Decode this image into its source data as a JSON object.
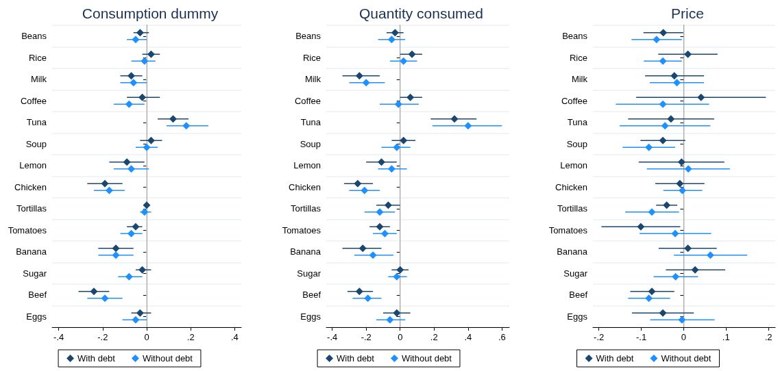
{
  "chart_data": [
    {
      "type": "scatter",
      "title": "Consumption dummy",
      "orientation": "horizontal",
      "categories": [
        "Beans",
        "Rice",
        "Milk",
        "Coffee",
        "Tuna",
        "Soup",
        "Lemon",
        "Chicken",
        "Tortillas",
        "Tomatoes",
        "Banana",
        "Sugar",
        "Beef",
        "Eggs"
      ],
      "xlim": [
        -0.43,
        0.43
      ],
      "xticks": [
        {
          "value": -0.4,
          "label": "-.4"
        },
        {
          "value": -0.2,
          "label": "-.2"
        },
        {
          "value": 0,
          "label": "0"
        },
        {
          "value": 0.2,
          "label": ".2"
        },
        {
          "value": 0.4,
          "label": ".4"
        }
      ],
      "grid": "y",
      "legend": "bottom",
      "marker": "diamond",
      "ref_lines": [
        {
          "axis": "x",
          "value": 0,
          "color": "#dddddd"
        }
      ],
      "series": [
        {
          "name": "With debt",
          "color": "#1a476f",
          "values": [
            -0.03,
            0.02,
            -0.07,
            -0.02,
            0.12,
            0.02,
            -0.09,
            -0.19,
            0,
            -0.05,
            -0.14,
            -0.02,
            -0.24,
            -0.03
          ],
          "errors": [
            [
              -0.06,
              0.01
            ],
            [
              -0.02,
              0.06
            ],
            [
              -0.12,
              -0.02
            ],
            [
              -0.09,
              0.06
            ],
            [
              0.05,
              0.19
            ],
            [
              -0.03,
              0.07
            ],
            [
              -0.17,
              -0.01
            ],
            [
              -0.27,
              -0.11
            ],
            [
              -0.01,
              0.01
            ],
            [
              -0.09,
              -0.02
            ],
            [
              -0.22,
              -0.06
            ],
            [
              -0.05,
              0.02
            ],
            [
              -0.31,
              -0.17
            ],
            [
              -0.07,
              0.02
            ]
          ]
        },
        {
          "name": "Without debt",
          "color": "#1e90ff",
          "values": [
            -0.05,
            -0.01,
            -0.06,
            -0.08,
            0.18,
            0,
            -0.07,
            -0.17,
            -0.01,
            -0.07,
            -0.14,
            -0.08,
            -0.19,
            -0.05
          ],
          "errors": [
            [
              -0.09,
              0
            ],
            [
              -0.07,
              0.04
            ],
            [
              -0.12,
              0
            ],
            [
              -0.15,
              -0.01
            ],
            [
              0.09,
              0.28
            ],
            [
              -0.05,
              0.05
            ],
            [
              -0.15,
              0.01
            ],
            [
              -0.24,
              -0.1
            ],
            [
              -0.03,
              0.02
            ],
            [
              -0.12,
              -0.02
            ],
            [
              -0.22,
              -0.06
            ],
            [
              -0.13,
              -0.02
            ],
            [
              -0.27,
              -0.11
            ],
            [
              -0.11,
              0
            ]
          ]
        }
      ]
    },
    {
      "type": "scatter",
      "title": "Quantity consumed",
      "orientation": "horizontal",
      "categories": [
        "Beans",
        "Rice",
        "Milk",
        "Coffee",
        "Tuna",
        "Soup",
        "Lemon",
        "Chicken",
        "Tortillas",
        "Tomatoes",
        "Banana",
        "Sugar",
        "Beef",
        "Eggs"
      ],
      "xlim": [
        -0.435,
        0.643
      ],
      "xticks": [
        {
          "value": -0.4,
          "label": "-.4"
        },
        {
          "value": -0.2,
          "label": "-.2"
        },
        {
          "value": 0,
          "label": "0"
        },
        {
          "value": 0.2,
          "label": ".2"
        },
        {
          "value": 0.4,
          "label": ".4"
        },
        {
          "value": 0.6,
          "label": ".6"
        }
      ],
      "grid": "y",
      "legend": "bottom",
      "marker": "diamond",
      "ref_lines": [
        {
          "axis": "x",
          "value": 0,
          "color": "#dddddd"
        }
      ],
      "series": [
        {
          "name": "With debt",
          "color": "#1a476f",
          "values": [
            -0.03,
            0.07,
            -0.24,
            0.06,
            0.32,
            0.02,
            -0.11,
            -0.25,
            -0.07,
            -0.12,
            -0.22,
            0,
            -0.24,
            -0.02
          ],
          "errors": [
            [
              -0.08,
              0.02
            ],
            [
              0,
              0.13
            ],
            [
              -0.34,
              -0.12
            ],
            [
              0,
              0.13
            ],
            [
              0.18,
              0.45
            ],
            [
              -0.05,
              0.09
            ],
            [
              -0.2,
              -0.02
            ],
            [
              -0.33,
              -0.16
            ],
            [
              -0.14,
              0
            ],
            [
              -0.18,
              -0.06
            ],
            [
              -0.34,
              -0.11
            ],
            [
              -0.05,
              0.05
            ],
            [
              -0.31,
              -0.16
            ],
            [
              -0.1,
              0.06
            ]
          ]
        },
        {
          "name": "Without debt",
          "color": "#1e90ff",
          "values": [
            -0.05,
            0.02,
            -0.2,
            -0.01,
            0.4,
            -0.02,
            -0.05,
            -0.21,
            -0.12,
            -0.09,
            -0.16,
            -0.02,
            -0.19,
            -0.06
          ],
          "errors": [
            [
              -0.13,
              0.03
            ],
            [
              -0.06,
              0.1
            ],
            [
              -0.3,
              -0.09
            ],
            [
              -0.12,
              0.11
            ],
            [
              0.19,
              0.6
            ],
            [
              -0.11,
              0.06
            ],
            [
              -0.13,
              0.04
            ],
            [
              -0.3,
              -0.12
            ],
            [
              -0.21,
              -0.03
            ],
            [
              -0.16,
              -0.02
            ],
            [
              -0.27,
              -0.04
            ],
            [
              -0.07,
              0.04
            ],
            [
              -0.28,
              -0.11
            ],
            [
              -0.14,
              0.03
            ]
          ]
        }
      ]
    },
    {
      "type": "scatter",
      "title": "Price",
      "orientation": "horizontal",
      "categories": [
        "Beans",
        "Rice",
        "Milk",
        "Coffee",
        "Tuna",
        "Soup",
        "Lemon",
        "Chicken",
        "Tortillas",
        "Tomatoes",
        "Banana",
        "Sugar",
        "Beef",
        "Eggs"
      ],
      "xlim": [
        -0.214,
        0.216
      ],
      "xticks": [
        {
          "value": -0.2,
          "label": "-.2"
        },
        {
          "value": -0.1,
          "label": "-.1"
        },
        {
          "value": 0,
          "label": "0"
        },
        {
          "value": 0.1,
          "label": ".1"
        },
        {
          "value": 0.2,
          "label": ".2"
        }
      ],
      "grid": "y",
      "legend": "bottom",
      "marker": "diamond",
      "ref_lines": [
        {
          "axis": "x",
          "value": 0,
          "color": "#dddddd"
        }
      ],
      "series": [
        {
          "name": "With debt",
          "color": "#1a476f",
          "values": [
            -0.048,
            0.01,
            -0.022,
            0.041,
            -0.03,
            -0.049,
            -0.005,
            -0.009,
            -0.04,
            -0.101,
            0.01,
            0.027,
            -0.075,
            -0.049
          ],
          "errors": [
            [
              -0.095,
              -0.001
            ],
            [
              -0.06,
              0.08
            ],
            [
              -0.091,
              0.048
            ],
            [
              -0.112,
              0.194
            ],
            [
              -0.131,
              0.072
            ],
            [
              -0.102,
              0.004
            ],
            [
              -0.106,
              0.096
            ],
            [
              -0.067,
              0.049
            ],
            [
              -0.065,
              -0.015
            ],
            [
              -0.194,
              -0.008
            ],
            [
              -0.059,
              0.078
            ],
            [
              -0.042,
              0.098
            ],
            [
              -0.126,
              -0.022
            ],
            [
              -0.122,
              0.024
            ]
          ]
        },
        {
          "name": "Without debt",
          "color": "#1e90ff",
          "values": [
            -0.064,
            -0.049,
            -0.016,
            -0.049,
            -0.044,
            -0.082,
            0.011,
            -0.003,
            -0.075,
            -0.02,
            0.063,
            -0.019,
            -0.082,
            -0.004
          ],
          "errors": [
            [
              -0.123,
              -0.004
            ],
            [
              -0.094,
              -0.004
            ],
            [
              -0.08,
              0.048
            ],
            [
              -0.16,
              0.06
            ],
            [
              -0.151,
              0.063
            ],
            [
              -0.144,
              -0.02
            ],
            [
              -0.087,
              0.109
            ],
            [
              -0.048,
              0.044
            ],
            [
              -0.138,
              -0.011
            ],
            [
              -0.104,
              0.065
            ],
            [
              -0.023,
              0.15
            ],
            [
              -0.071,
              0.034
            ],
            [
              -0.131,
              -0.032
            ],
            [
              -0.079,
              0.073
            ]
          ]
        }
      ]
    }
  ]
}
